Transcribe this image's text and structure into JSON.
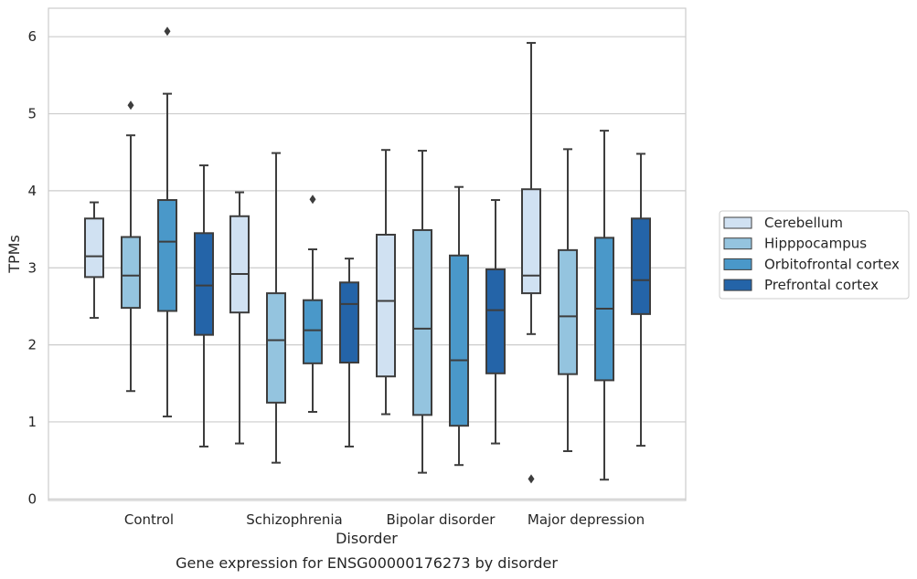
{
  "chart_data": {
    "type": "box",
    "title": "",
    "caption": "Gene expression for ENSG00000176273 by disorder",
    "xlabel": "Disorder",
    "ylabel": "TPMs",
    "ylim": [
      -0.02,
      6.37
    ],
    "yticks": [
      0,
      1,
      2,
      3,
      4,
      5,
      6
    ],
    "categories": [
      "Control",
      "Schizophrenia",
      "Bipolar disorder",
      "Major depression"
    ],
    "grid": "horizontal",
    "legend_position": "right",
    "series": [
      {
        "name": "Cerebellum",
        "color": "#d0e1f2",
        "boxes": [
          {
            "whisker_low": 2.35,
            "q1": 2.88,
            "median": 3.15,
            "q3": 3.64,
            "whisker_high": 3.85,
            "outliers": []
          },
          {
            "whisker_low": 0.72,
            "q1": 2.42,
            "median": 2.92,
            "q3": 3.67,
            "whisker_high": 3.98,
            "outliers": []
          },
          {
            "whisker_low": 1.1,
            "q1": 1.59,
            "median": 2.57,
            "q3": 3.43,
            "whisker_high": 4.53,
            "outliers": []
          },
          {
            "whisker_low": 2.14,
            "q1": 2.67,
            "median": 2.9,
            "q3": 4.02,
            "whisker_high": 5.92,
            "outliers": [
              0.26
            ]
          }
        ]
      },
      {
        "name": "Hipppocampus",
        "color": "#94c4df",
        "boxes": [
          {
            "whisker_low": 1.4,
            "q1": 2.48,
            "median": 2.9,
            "q3": 3.4,
            "whisker_high": 4.72,
            "outliers": [
              5.11
            ]
          },
          {
            "whisker_low": 0.47,
            "q1": 1.25,
            "median": 2.06,
            "q3": 2.67,
            "whisker_high": 4.49,
            "outliers": []
          },
          {
            "whisker_low": 0.34,
            "q1": 1.09,
            "median": 2.21,
            "q3": 3.49,
            "whisker_high": 4.52,
            "outliers": []
          },
          {
            "whisker_low": 0.62,
            "q1": 1.62,
            "median": 2.37,
            "q3": 3.23,
            "whisker_high": 4.54,
            "outliers": []
          }
        ]
      },
      {
        "name": "Orbitofrontal cortex",
        "color": "#4a98c9",
        "boxes": [
          {
            "whisker_low": 1.07,
            "q1": 2.44,
            "median": 3.34,
            "q3": 3.88,
            "whisker_high": 5.26,
            "outliers": [
              6.07
            ]
          },
          {
            "whisker_low": 1.13,
            "q1": 1.76,
            "median": 2.19,
            "q3": 2.58,
            "whisker_high": 3.24,
            "outliers": [
              3.89
            ]
          },
          {
            "whisker_low": 0.44,
            "q1": 0.95,
            "median": 1.8,
            "q3": 3.16,
            "whisker_high": 4.05,
            "outliers": []
          },
          {
            "whisker_low": 0.25,
            "q1": 1.54,
            "median": 2.47,
            "q3": 3.39,
            "whisker_high": 4.78,
            "outliers": []
          }
        ]
      },
      {
        "name": "Prefrontal cortex",
        "color": "#2464a8",
        "boxes": [
          {
            "whisker_low": 0.68,
            "q1": 2.13,
            "median": 2.77,
            "q3": 3.45,
            "whisker_high": 4.33,
            "outliers": []
          },
          {
            "whisker_low": 0.68,
            "q1": 1.77,
            "median": 2.53,
            "q3": 2.81,
            "whisker_high": 3.12,
            "outliers": []
          },
          {
            "whisker_low": 0.72,
            "q1": 1.63,
            "median": 2.45,
            "q3": 2.98,
            "whisker_high": 3.88,
            "outliers": []
          },
          {
            "whisker_low": 0.69,
            "q1": 2.4,
            "median": 2.84,
            "q3": 3.64,
            "whisker_high": 4.48,
            "outliers": []
          }
        ]
      }
    ]
  }
}
